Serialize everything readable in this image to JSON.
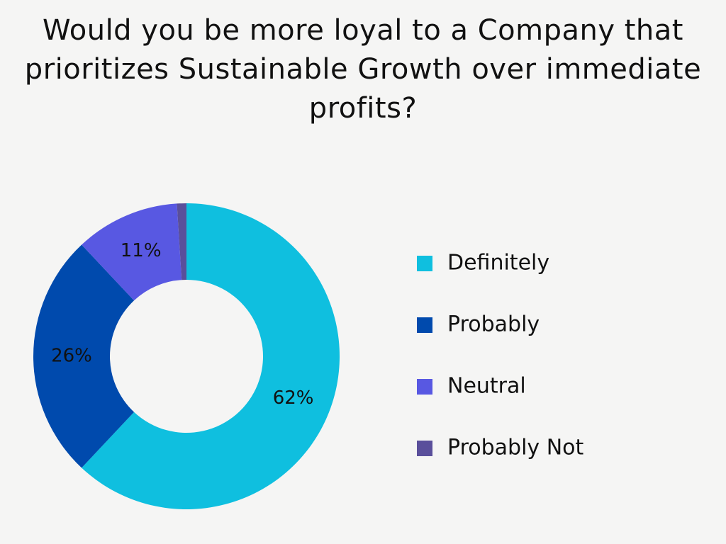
{
  "chart_data": {
    "type": "pie",
    "variant": "donut",
    "title": "Would you be more loyal to a Company that prioritizes Sustainable Growth over immediate profits?",
    "categories": [
      "Definitely",
      "Probably",
      "Neutral",
      "Probably Not"
    ],
    "values": [
      62,
      26,
      11,
      1
    ],
    "data_labels": [
      "62%",
      "26%",
      "11%",
      ""
    ],
    "colors": [
      "#0fbfdf",
      "#004aad",
      "#5858e2",
      "#5a4f9b"
    ],
    "legend_position": "right"
  }
}
